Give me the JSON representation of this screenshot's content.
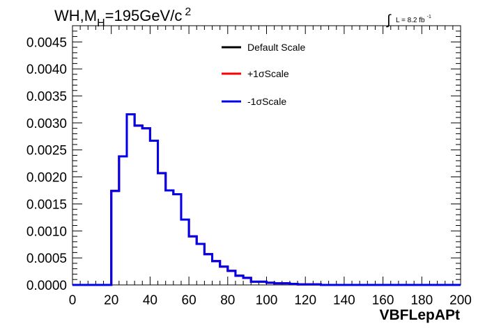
{
  "chart_data": {
    "type": "line",
    "title": {
      "main": "WH,M",
      "sub": "H",
      "rest": "=195GeV/c",
      "sup": "2"
    },
    "lumi": {
      "integral": "∫",
      "text": "L = 8.2 fb",
      "sup": "-1"
    },
    "xlabel": "VBFLepAPt",
    "ylabel": "",
    "xlim": [
      0,
      200
    ],
    "ylim": [
      0,
      0.0048
    ],
    "x_ticks": [
      "0",
      "20",
      "40",
      "60",
      "80",
      "100",
      "120",
      "140",
      "160",
      "180",
      "200"
    ],
    "y_ticks": [
      "0.0000",
      "0.0005",
      "0.0010",
      "0.0015",
      "0.0020",
      "0.0025",
      "0.0030",
      "0.0035",
      "0.0040",
      "0.0045"
    ],
    "bin_edges": [
      0,
      4,
      8,
      12,
      16,
      20,
      24,
      28,
      32,
      36,
      40,
      44,
      48,
      52,
      56,
      60,
      64,
      68,
      72,
      76,
      80,
      84,
      88,
      92,
      96,
      100,
      104,
      108,
      112,
      116,
      120,
      124,
      128,
      132,
      136,
      140,
      144,
      148,
      152,
      156,
      160,
      164,
      168,
      172,
      176,
      180,
      184,
      188,
      192,
      196,
      200
    ],
    "series": [
      {
        "name": "Default Scale",
        "color": "#000000",
        "values": [
          0,
          0,
          0,
          0,
          0,
          0.00174,
          0.00238,
          0.00316,
          0.00295,
          0.0029,
          0.00267,
          0.00207,
          0.00175,
          0.00168,
          0.00121,
          0.0009,
          0.00076,
          0.00057,
          0.00044,
          0.00034,
          0.00026,
          0.00017,
          0.00013,
          6e-05,
          6e-05,
          4e-05,
          3e-05,
          3e-05,
          2e-05,
          1e-05,
          1e-05,
          1e-05,
          0,
          0,
          0,
          0,
          0,
          0,
          0,
          0,
          0,
          0,
          0,
          0,
          0,
          0,
          0,
          0,
          0,
          0
        ]
      },
      {
        "name": "+1σScale",
        "color": "#ff0000",
        "values": [
          0,
          0,
          0,
          0,
          0,
          0.00174,
          0.00238,
          0.00316,
          0.00295,
          0.0029,
          0.00267,
          0.00207,
          0.00175,
          0.00168,
          0.00121,
          0.0009,
          0.00076,
          0.00057,
          0.00044,
          0.00034,
          0.00026,
          0.00017,
          0.00013,
          6e-05,
          6e-05,
          4e-05,
          3e-05,
          3e-05,
          2e-05,
          1e-05,
          1e-05,
          1e-05,
          0,
          0,
          0,
          0,
          0,
          0,
          0,
          0,
          0,
          0,
          0,
          0,
          0,
          0,
          0,
          0,
          0,
          0
        ]
      },
      {
        "name": "-1σScale",
        "color": "#0000ee",
        "values": [
          0,
          0,
          0,
          0,
          0,
          0.00174,
          0.00238,
          0.00316,
          0.00295,
          0.0029,
          0.00267,
          0.00207,
          0.00175,
          0.00168,
          0.00121,
          0.0009,
          0.00076,
          0.00057,
          0.00044,
          0.00034,
          0.00026,
          0.00017,
          0.00013,
          6e-05,
          6e-05,
          4e-05,
          3e-05,
          3e-05,
          2e-05,
          1e-05,
          1e-05,
          1e-05,
          0,
          0,
          0,
          0,
          0,
          0,
          0,
          0,
          0,
          0,
          0,
          0,
          0,
          0,
          0,
          0,
          0,
          0
        ]
      }
    ],
    "legend_placement": "top-center",
    "grid": false
  }
}
